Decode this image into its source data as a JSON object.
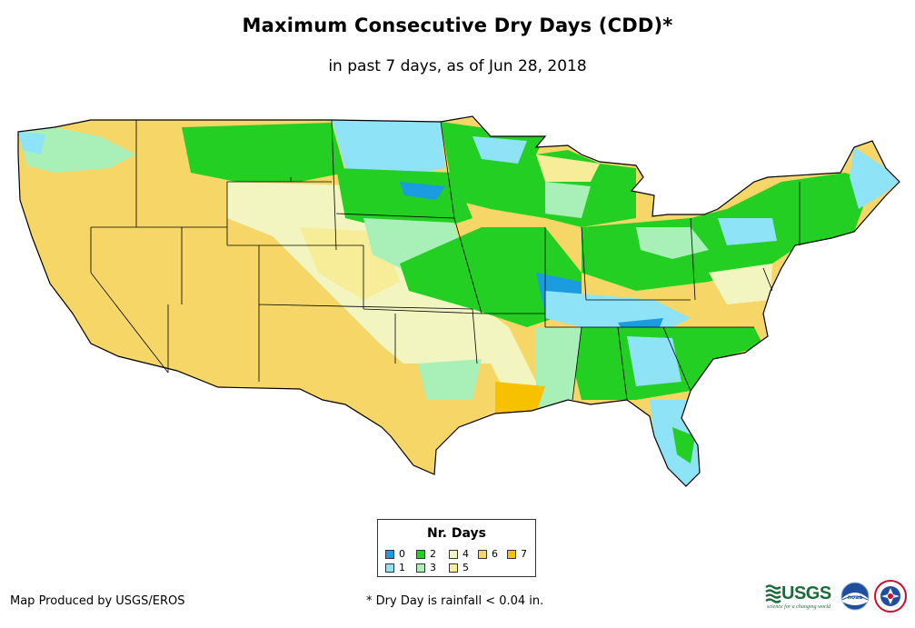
{
  "title": "Maximum Consecutive Dry Days (CDD)*",
  "subtitle": "in past 7 days, as of Jun 28, 2018",
  "legend": {
    "title": "Nr. Days",
    "items": [
      {
        "label": "0",
        "color": "#1c9ce0"
      },
      {
        "label": "1",
        "color": "#8ee3f7"
      },
      {
        "label": "2",
        "color": "#22cf22"
      },
      {
        "label": "3",
        "color": "#a8f0b8"
      },
      {
        "label": "4",
        "color": "#f2f5c0"
      },
      {
        "label": "5",
        "color": "#f7ec98"
      },
      {
        "label": "6",
        "color": "#f5d667"
      },
      {
        "label": "7",
        "color": "#f8c100"
      }
    ]
  },
  "credit": "Map Produced by USGS/EROS",
  "footnote": "* Dry Day is rainfall < 0.04 in.",
  "logos": {
    "usgs_text": "USGS",
    "usgs_tagline": "science for a changing world",
    "noaa_text": "noaa",
    "nws_icon": "nws-logo-icon"
  },
  "colors": {
    "border": "#000000",
    "water": "#ffffff"
  }
}
